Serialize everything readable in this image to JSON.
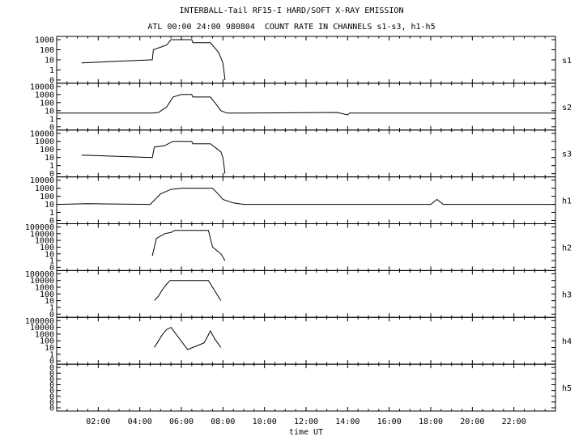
{
  "header": {
    "title": "INTERBALL-Tail RF15-I HARD/SOFT X-RAY EMISSION",
    "subtitle": "ATL 00:00 24:00 980804  COUNT RATE IN CHANNELS s1-s3, h1-h5"
  },
  "chart_data": {
    "type": "line",
    "xlabel": "time UT",
    "x_unit": "hours UT",
    "xlim": [
      0,
      24
    ],
    "x_ticks": [
      "02:00",
      "04:00",
      "06:00",
      "08:00",
      "10:00",
      "12:00",
      "14:00",
      "16:00",
      "18:00",
      "20:00",
      "22:00"
    ],
    "x_tick_values": [
      2,
      4,
      6,
      8,
      10,
      12,
      14,
      16,
      18,
      20,
      22
    ],
    "grid": false,
    "panels": [
      {
        "name": "s1",
        "ylog": true,
        "yticks": [
          "1000",
          "100",
          "10",
          "1",
          "0"
        ],
        "series": [
          {
            "x": [
              1.2,
              4.6,
              4.65,
              5.3,
              5.5,
              6.0,
              6.5,
              6.55,
              7.4,
              7.8,
              8.0,
              8.1
            ],
            "y": [
              5,
              10,
              100,
              300,
              1000,
              1000,
              1000,
              500,
              500,
              50,
              5,
              0
            ]
          }
        ]
      },
      {
        "name": "s2",
        "ylog": true,
        "yticks": [
          "10000",
          "1000",
          "100",
          "10",
          "1",
          "0"
        ],
        "series": [
          {
            "x": [
              0,
              4.6,
              4.9,
              5.3,
              5.6,
              6.0,
              6.5,
              6.55,
              7.4,
              7.7,
              7.9,
              8.2,
              9,
              13.5,
              14,
              14.1,
              15,
              24
            ],
            "y": [
              5,
              5,
              6,
              30,
              500,
              1000,
              1000,
              500,
              500,
              50,
              10,
              5,
              5,
              6,
              3,
              5,
              5,
              5
            ]
          }
        ]
      },
      {
        "name": "s3",
        "ylog": true,
        "yticks": [
          "10000",
          "1000",
          "100",
          "10",
          "1",
          "0"
        ],
        "series": [
          {
            "x": [
              1.2,
              4.6,
              4.7,
              5.2,
              5.6,
              6.0,
              6.5,
              6.55,
              7.4,
              7.9,
              8.0,
              8.1
            ],
            "y": [
              20,
              10,
              200,
              300,
              1000,
              1000,
              1000,
              500,
              500,
              50,
              10,
              0
            ]
          }
        ]
      },
      {
        "name": "h1",
        "ylog": true,
        "yticks": [
          "10000",
          "1000",
          "100",
          "10",
          "1",
          "0"
        ],
        "series": [
          {
            "x": [
              0,
              1.5,
              4.5,
              4.8,
              5.0,
              5.5,
              6.0,
              7.5,
              7.7,
              8.0,
              8.5,
              9.0,
              18,
              18.3,
              18.6,
              24
            ],
            "y": [
              10,
              12,
              10,
              60,
              200,
              700,
              1000,
              1000,
              300,
              40,
              15,
              10,
              10,
              40,
              10,
              10
            ]
          }
        ]
      },
      {
        "name": "h2",
        "ylog": true,
        "yticks": [
          "100000",
          "10000",
          "1000",
          "100",
          "10",
          "1",
          "0"
        ],
        "series": [
          {
            "x": [
              4.6,
              4.8,
              5.2,
              5.5,
              5.7,
              6.2,
              7.3,
              7.5,
              7.9,
              8.1
            ],
            "y": [
              5,
              2000,
              10000,
              15000,
              30000,
              30000,
              30000,
              100,
              10,
              1
            ]
          }
        ]
      },
      {
        "name": "h3",
        "ylog": true,
        "yticks": [
          "100000",
          "10000",
          "1000",
          "100",
          "10",
          "1",
          "0"
        ],
        "series": [
          {
            "x": [
              4.7,
              4.9,
              5.1,
              5.3,
              5.45,
              7.3,
              7.5,
              7.7,
              7.9
            ],
            "y": [
              10,
              50,
              500,
              3000,
              10000,
              10000,
              1000,
              100,
              10
            ]
          }
        ]
      },
      {
        "name": "h4",
        "ylog": true,
        "yticks": [
          "100000",
          "10000",
          "1000",
          "100",
          "10",
          "1",
          "0"
        ],
        "series": [
          {
            "x": [
              4.7,
              4.9,
              5.1,
              5.3,
              5.5,
              6.3,
              7.1,
              7.4,
              7.6,
              7.9
            ],
            "y": [
              10,
              100,
              1000,
              5000,
              10000,
              5,
              50,
              3000,
              200,
              10
            ]
          }
        ]
      },
      {
        "name": "h5",
        "ylog": false,
        "yticks": [
          "0",
          "0",
          "0",
          "0",
          "0",
          "0",
          "0",
          "0"
        ],
        "series": [
          {
            "x": [],
            "y": []
          }
        ]
      }
    ]
  }
}
